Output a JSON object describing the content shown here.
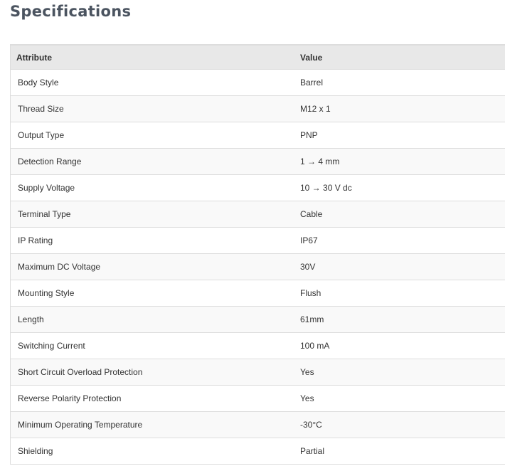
{
  "title": "Specifications",
  "headers": {
    "attribute": "Attribute",
    "value": "Value"
  },
  "rows": [
    {
      "attribute": "Body Style",
      "value": "Barrel"
    },
    {
      "attribute": "Thread Size",
      "value": "M12 x 1"
    },
    {
      "attribute": "Output Type",
      "value": "PNP"
    },
    {
      "attribute": "Detection Range",
      "value": "1 → 4 mm"
    },
    {
      "attribute": "Supply Voltage",
      "value": "10 → 30 V dc"
    },
    {
      "attribute": "Terminal Type",
      "value": "Cable"
    },
    {
      "attribute": "IP Rating",
      "value": "IP67"
    },
    {
      "attribute": "Maximum DC Voltage",
      "value": "30V"
    },
    {
      "attribute": "Mounting Style",
      "value": "Flush"
    },
    {
      "attribute": "Length",
      "value": "61mm"
    },
    {
      "attribute": "Switching Current",
      "value": "100 mA"
    },
    {
      "attribute": "Short Circuit Overload Protection",
      "value": "Yes"
    },
    {
      "attribute": "Reverse Polarity Protection",
      "value": "Yes"
    },
    {
      "attribute": "Minimum Operating Temperature",
      "value": "-30°C"
    },
    {
      "attribute": "Shielding",
      "value": "Partial"
    }
  ]
}
